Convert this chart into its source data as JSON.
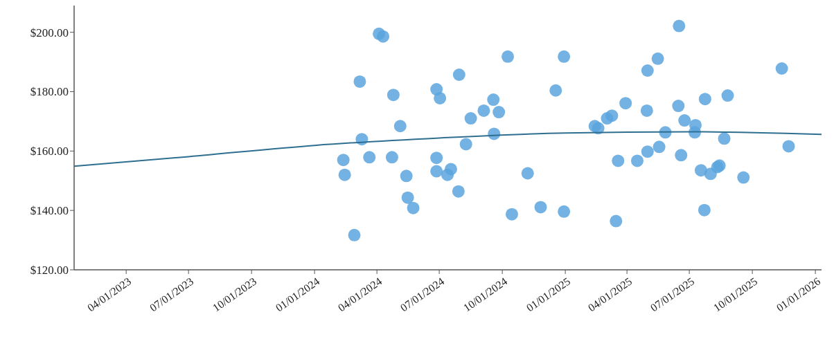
{
  "chart_data": {
    "type": "scatter",
    "xlim": [
      "2023-01-15",
      "2026-01-10"
    ],
    "ylim": [
      120,
      209
    ],
    "xticks": [
      {
        "value": "2023-04-01",
        "label": "04/01/2023"
      },
      {
        "value": "2023-07-01",
        "label": "07/01/2023"
      },
      {
        "value": "2023-10-01",
        "label": "10/01/2023"
      },
      {
        "value": "2024-01-01",
        "label": "01/01/2024"
      },
      {
        "value": "2024-04-01",
        "label": "04/01/2024"
      },
      {
        "value": "2024-07-01",
        "label": "07/01/2024"
      },
      {
        "value": "2024-10-01",
        "label": "10/01/2024"
      },
      {
        "value": "2025-01-01",
        "label": "01/01/2025"
      },
      {
        "value": "2025-04-01",
        "label": "04/01/2025"
      },
      {
        "value": "2025-07-01",
        "label": "07/01/2025"
      },
      {
        "value": "2025-10-01",
        "label": "10/01/2025"
      },
      {
        "value": "2026-01-01",
        "label": "01/01/2026"
      }
    ],
    "yticks": [
      {
        "value": 120,
        "label": "$120.00"
      },
      {
        "value": 140,
        "label": "$140.00"
      },
      {
        "value": 160,
        "label": "$160.00"
      },
      {
        "value": 180,
        "label": "$180.00"
      },
      {
        "value": 200,
        "label": "$200.00"
      }
    ],
    "grid": false,
    "series": [
      {
        "color": "#5aa5dd",
        "marker": "circle",
        "x": [
          "2024-02-12",
          "2024-02-14",
          "2024-02-28",
          "2024-03-07",
          "2024-03-10",
          "2024-03-21",
          "2024-04-04",
          "2024-04-10",
          "2024-04-23",
          "2024-04-25",
          "2024-05-05",
          "2024-05-14",
          "2024-05-16",
          "2024-05-24",
          "2024-06-27",
          "2024-07-02",
          "2024-06-27",
          "2024-06-27",
          "2024-07-13",
          "2024-07-18",
          "2024-07-29",
          "2024-07-30",
          "2024-08-09",
          "2024-08-16",
          "2024-09-04",
          "2024-09-18",
          "2024-09-19",
          "2024-09-26",
          "2024-10-09",
          "2024-10-15",
          "2024-11-07",
          "2024-11-26",
          "2024-12-18",
          "2024-12-30",
          "2024-12-30",
          "2025-02-13",
          "2025-02-18",
          "2025-03-03",
          "2025-03-10",
          "2025-03-16",
          "2025-03-19",
          "2025-03-30",
          "2025-04-16",
          "2025-04-30",
          "2025-05-01",
          "2025-05-01",
          "2025-05-16",
          "2025-05-18",
          "2025-05-27",
          "2025-06-15",
          "2025-06-16",
          "2025-06-19",
          "2025-06-24",
          "2025-07-09",
          "2025-07-10",
          "2025-07-18",
          "2025-07-23",
          "2025-07-24",
          "2025-08-01",
          "2025-08-11",
          "2025-08-14",
          "2025-08-21",
          "2025-08-26",
          "2025-09-18",
          "2025-11-13",
          "2025-11-23"
        ],
        "values": [
          157.0,
          152.0,
          131.7,
          183.4,
          164.0,
          157.9,
          199.5,
          198.6,
          157.9,
          178.9,
          168.4,
          151.6,
          144.3,
          140.8,
          180.8,
          177.8,
          157.7,
          153.2,
          152.0,
          153.9,
          146.4,
          185.7,
          162.3,
          171.0,
          173.6,
          177.3,
          165.8,
          173.1,
          191.8,
          138.7,
          152.5,
          141.1,
          180.4,
          191.8,
          139.6,
          168.4,
          167.7,
          171.0,
          171.9,
          136.4,
          156.7,
          176.1,
          156.7,
          173.6,
          187.1,
          159.8,
          191.1,
          161.4,
          166.3,
          175.2,
          202.1,
          158.6,
          170.3,
          166.3,
          168.7,
          153.5,
          140.1,
          177.5,
          152.3,
          154.6,
          155.1,
          164.2,
          178.7,
          151.1,
          187.8,
          161.6
        ]
      },
      {
        "type": "line",
        "color": "#2e6e91",
        "marker": "none",
        "x": [
          "2023-01-15",
          "2023-07-01",
          "2024-01-01",
          "2024-07-01",
          "2025-01-01",
          "2025-07-01",
          "2026-01-10"
        ],
        "values": [
          154.9,
          158.1,
          161.9,
          164.4,
          166.1,
          166.5,
          165.6
        ]
      }
    ]
  }
}
